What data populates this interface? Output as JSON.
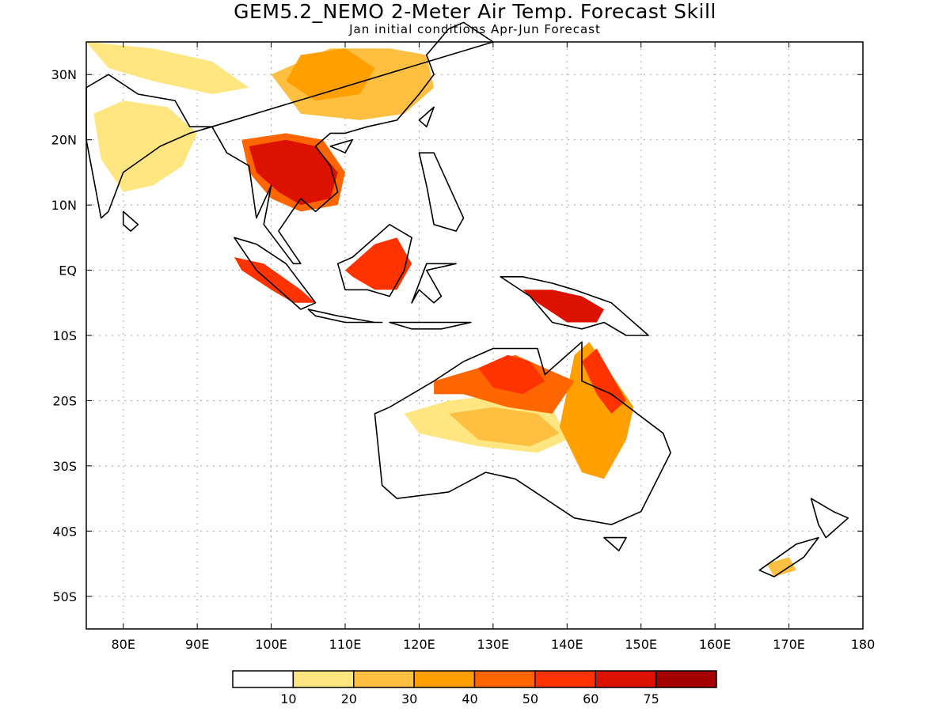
{
  "header": {
    "title": "GEM5.2_NEMO 2-Meter Air Temp. Forecast Skill",
    "subtitle": "Jan initial conditions  Apr-Jun Forecast"
  },
  "map": {
    "lon_range": [
      75,
      180
    ],
    "lat_range": [
      -55,
      35
    ],
    "grid": true,
    "lat_ticks": [
      {
        "value": 30,
        "label": "30N"
      },
      {
        "value": 20,
        "label": "20N"
      },
      {
        "value": 10,
        "label": "10N"
      },
      {
        "value": 0,
        "label": "EQ"
      },
      {
        "value": -10,
        "label": "10S"
      },
      {
        "value": -20,
        "label": "20S"
      },
      {
        "value": -30,
        "label": "30S"
      },
      {
        "value": -40,
        "label": "40S"
      },
      {
        "value": -50,
        "label": "50S"
      }
    ],
    "lon_ticks": [
      {
        "value": 80,
        "label": "80E"
      },
      {
        "value": 90,
        "label": "90E"
      },
      {
        "value": 100,
        "label": "100E"
      },
      {
        "value": 110,
        "label": "110E"
      },
      {
        "value": 120,
        "label": "120E"
      },
      {
        "value": 130,
        "label": "130E"
      },
      {
        "value": 140,
        "label": "140E"
      },
      {
        "value": 150,
        "label": "150E"
      },
      {
        "value": 160,
        "label": "160E"
      },
      {
        "value": 170,
        "label": "170E"
      },
      {
        "value": 180,
        "label": "180"
      }
    ],
    "skill_regions": [
      {
        "name": "india-low",
        "level": 1,
        "lon": [
          76,
          80,
          86,
          90,
          88,
          84,
          80,
          77
        ],
        "lat": [
          24,
          26,
          25,
          21,
          16,
          13,
          12,
          17
        ]
      },
      {
        "name": "china-band",
        "level": 2,
        "lon": [
          100,
          108,
          116,
          121,
          122,
          118,
          112,
          104
        ],
        "lat": [
          30,
          34,
          34,
          33,
          28,
          24,
          23,
          24
        ]
      },
      {
        "name": "china-core",
        "level": 3,
        "lon": [
          104,
          110,
          114,
          112,
          106,
          102
        ],
        "lat": [
          33,
          34,
          31,
          27,
          26,
          29
        ]
      },
      {
        "name": "himalaya",
        "level": 1,
        "lon": [
          75,
          84,
          92,
          97,
          92,
          84,
          78
        ],
        "lat": [
          35,
          34,
          32,
          28,
          27,
          29,
          31
        ]
      },
      {
        "name": "mainland-sea",
        "level": 6,
        "lon": [
          97,
          102,
          106,
          109,
          108,
          104,
          101,
          98
        ],
        "lat": [
          19,
          20,
          19,
          15,
          11,
          10,
          12,
          15
        ]
      },
      {
        "name": "mainland-sea-ring",
        "level": 4,
        "lon": [
          96,
          102,
          107,
          110,
          109,
          104,
          100,
          97
        ],
        "lat": [
          20,
          21,
          20,
          15,
          10,
          9,
          11,
          15
        ]
      },
      {
        "name": "sumatra",
        "level": 5,
        "lon": [
          95,
          99,
          104,
          106,
          103,
          100,
          96
        ],
        "lat": [
          2,
          1,
          -3,
          -5,
          -5,
          -3,
          0
        ]
      },
      {
        "name": "borneo",
        "level": 5,
        "lon": [
          110,
          114,
          117,
          119,
          117,
          114,
          111
        ],
        "lat": [
          0,
          4,
          5,
          1,
          -3,
          -3,
          -1
        ]
      },
      {
        "name": "new-guinea",
        "level": 6,
        "lon": [
          134,
          138,
          142,
          145,
          144,
          140,
          136
        ],
        "lat": [
          -3,
          -3,
          -4,
          -6,
          -8,
          -8,
          -5
        ]
      },
      {
        "name": "aus-north",
        "level": 4,
        "lon": [
          122,
          128,
          133,
          137,
          141,
          138,
          132,
          126,
          122
        ],
        "lat": [
          -17,
          -15,
          -13,
          -15,
          -17,
          -22,
          -21,
          -19,
          -19
        ]
      },
      {
        "name": "aus-north-core",
        "level": 5,
        "lon": [
          128,
          132,
          135,
          137,
          134,
          130
        ],
        "lat": [
          -15,
          -13,
          -14,
          -17,
          -19,
          -18
        ]
      },
      {
        "name": "aus-east",
        "level": 3,
        "lon": [
          141,
          143,
          146,
          149,
          148,
          145,
          142,
          139
        ],
        "lat": [
          -13,
          -11,
          -16,
          -21,
          -26,
          -32,
          -31,
          -24
        ]
      },
      {
        "name": "aus-east-core",
        "level": 5,
        "lon": [
          142,
          144,
          146,
          148,
          146,
          144
        ],
        "lat": [
          -14,
          -12,
          -16,
          -20,
          -22,
          -19
        ]
      },
      {
        "name": "aus-central-band",
        "level": 1,
        "lon": [
          118,
          124,
          132,
          138,
          140,
          136,
          128,
          120
        ],
        "lat": [
          -22,
          -20,
          -19,
          -21,
          -26,
          -28,
          -27,
          -25
        ]
      },
      {
        "name": "aus-inner",
        "level": 2,
        "lon": [
          124,
          130,
          136,
          139,
          135,
          128
        ],
        "lat": [
          -22,
          -21,
          -22,
          -25,
          -27,
          -26
        ]
      },
      {
        "name": "new-zealand-south",
        "level": 2,
        "lon": [
          167,
          170,
          171,
          168
        ],
        "lat": [
          -45,
          -44,
          -46,
          -47
        ]
      }
    ],
    "coastlines": [
      {
        "name": "india",
        "lon": [
          75,
          78,
          82,
          87,
          89,
          92,
          89,
          85,
          80,
          78,
          77,
          75
        ],
        "lat": [
          28,
          30,
          27,
          26,
          22,
          22,
          21,
          19,
          15,
          9,
          8,
          20
        ]
      },
      {
        "name": "sri-lanka",
        "lon": [
          80,
          82,
          81,
          80
        ],
        "lat": [
          9,
          7,
          6,
          7
        ]
      },
      {
        "name": "asia-mainland",
        "lon": [
          92,
          94,
          97,
          98,
          100,
          99,
          103,
          104,
          101,
          104,
          106,
          109,
          108,
          106,
          108,
          110,
          113,
          117,
          120,
          122,
          121,
          124,
          126,
          130
        ],
        "lat": [
          22,
          18,
          16,
          8,
          13,
          7,
          1,
          1,
          6,
          11,
          9,
          12,
          16,
          19,
          21,
          21,
          22,
          23,
          27,
          30,
          33,
          37,
          38,
          35
        ]
      },
      {
        "name": "hainan",
        "lon": [
          108,
          111,
          110,
          108
        ],
        "lat": [
          19,
          20,
          18,
          19
        ]
      },
      {
        "name": "taiwan",
        "lon": [
          120,
          122,
          121,
          120
        ],
        "lat": [
          23,
          25,
          22,
          23
        ]
      },
      {
        "name": "sumatra",
        "lon": [
          95,
          98,
          102,
          106,
          104,
          101,
          98,
          95
        ],
        "lat": [
          5,
          4,
          1,
          -5,
          -6,
          -3,
          0,
          5
        ]
      },
      {
        "name": "java",
        "lon": [
          105,
          109,
          114,
          115,
          110,
          106,
          105
        ],
        "lat": [
          -6,
          -7,
          -8,
          -8,
          -8,
          -7,
          -6
        ]
      },
      {
        "name": "lesser-sunda",
        "lon": [
          116,
          119,
          123,
          127
        ],
        "lat": [
          -8,
          -9,
          -9,
          -8
        ]
      },
      {
        "name": "borneo",
        "lon": [
          109,
          111,
          116,
          119,
          118,
          116,
          113,
          110,
          109
        ],
        "lat": [
          1,
          2,
          7,
          5,
          0,
          -4,
          -3,
          -3,
          1
        ]
      },
      {
        "name": "sulawesi",
        "lon": [
          119,
          121,
          125,
          121,
          123,
          122,
          120,
          119
        ],
        "lat": [
          -5,
          1,
          1,
          0,
          -4,
          -5,
          -3,
          -5
        ]
      },
      {
        "name": "philippines",
        "lon": [
          120,
          122,
          124,
          126,
          125,
          122,
          121,
          120
        ],
        "lat": [
          18,
          18,
          13,
          8,
          6,
          7,
          13,
          18
        ]
      },
      {
        "name": "new-guinea",
        "lon": [
          131,
          134,
          138,
          141,
          146,
          151,
          148,
          145,
          142,
          138,
          135,
          131
        ],
        "lat": [
          -1,
          -1,
          -2,
          -3,
          -5,
          -10,
          -10,
          -8,
          -9,
          -8,
          -4,
          -1
        ]
      },
      {
        "name": "australia",
        "lon": [
          114,
          116,
          122,
          126,
          130,
          136,
          137,
          142,
          142,
          146,
          153,
          154,
          150,
          146,
          141,
          137,
          133,
          129,
          124,
          117,
          115,
          114
        ],
        "lat": [
          -22,
          -21,
          -17,
          -14,
          -12,
          -12,
          -16,
          -11,
          -17,
          -19,
          -25,
          -28,
          -37,
          -39,
          -38,
          -35,
          -32,
          -31,
          -34,
          -35,
          -33,
          -22
        ]
      },
      {
        "name": "tasmania",
        "lon": [
          145,
          148,
          147,
          145
        ],
        "lat": [
          -41,
          -41,
          -43,
          -41
        ]
      },
      {
        "name": "nz-north",
        "lon": [
          173,
          176,
          178,
          175,
          174,
          173
        ],
        "lat": [
          -35,
          -37,
          -38,
          -41,
          -39,
          -35
        ]
      },
      {
        "name": "nz-south",
        "lon": [
          166,
          171,
          174,
          172,
          168,
          166
        ],
        "lat": [
          -46,
          -42,
          -41,
          -44,
          -47,
          -46
        ]
      }
    ]
  },
  "legend": {
    "colors": [
      "#ffffff",
      "#ffe680",
      "#ffbf40",
      "#ff9f00",
      "#ff6600",
      "#ff3300",
      "#dd1100",
      "#a50000"
    ],
    "labels": [
      "10",
      "20",
      "30",
      "40",
      "50",
      "60",
      "75"
    ]
  },
  "colors": {
    "land_outline": "#000000",
    "grid": "#aaaaaa",
    "frame": "#000000"
  }
}
